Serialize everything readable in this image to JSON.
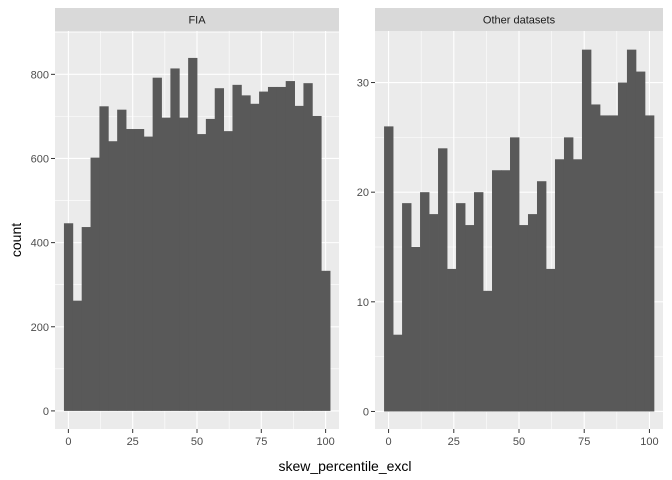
{
  "chart_data": {
    "type": "bar",
    "xlabel": "skew_percentile_excl",
    "ylabel": "count",
    "colors": {
      "bar": "#595959",
      "panel_background": "#ebebeb",
      "grid": "#ffffff",
      "strip": "#d9d9d9"
    },
    "bin_width": 3.45,
    "x_ticks": [
      0,
      25,
      50,
      75,
      100
    ],
    "facets": [
      {
        "title": "FIA",
        "xlim": [
          -5.2,
          105.2
        ],
        "ylim": [
          -43,
          903
        ],
        "y_ticks": [
          0,
          200,
          400,
          600,
          800
        ],
        "bin_centers": [
          0,
          3.45,
          6.9,
          10.34,
          13.79,
          17.24,
          20.69,
          24.14,
          27.59,
          31.03,
          34.48,
          37.93,
          41.38,
          44.83,
          48.28,
          51.72,
          55.17,
          58.62,
          62.07,
          65.52,
          68.97,
          72.41,
          75.86,
          79.31,
          82.76,
          86.21,
          89.66,
          93.1,
          96.55,
          100
        ],
        "values": [
          446,
          262,
          437,
          602,
          724,
          641,
          716,
          670,
          670,
          652,
          792,
          697,
          814,
          697,
          839,
          658,
          694,
          767,
          665,
          775,
          750,
          730,
          759,
          770,
          770,
          784,
          725,
          779,
          701,
          333
        ]
      },
      {
        "title": "Other datasets",
        "xlim": [
          -5.2,
          105.2
        ],
        "ylim": [
          -1.6,
          34.7
        ],
        "y_ticks": [
          0,
          10,
          20,
          30
        ],
        "bin_centers": [
          0,
          3.45,
          6.9,
          10.34,
          13.79,
          17.24,
          20.69,
          24.14,
          27.59,
          31.03,
          34.48,
          37.93,
          41.38,
          44.83,
          48.28,
          51.72,
          55.17,
          58.62,
          62.07,
          65.52,
          68.97,
          72.41,
          75.86,
          79.31,
          82.76,
          86.21,
          89.66,
          93.1,
          96.55,
          100
        ],
        "values": [
          26,
          7,
          19,
          15,
          20,
          18,
          24,
          13,
          19,
          17,
          20,
          11,
          22,
          22,
          25,
          17,
          18,
          21,
          13,
          23,
          25,
          23,
          33,
          28,
          27,
          27,
          30,
          33,
          31,
          27
        ]
      }
    ]
  }
}
